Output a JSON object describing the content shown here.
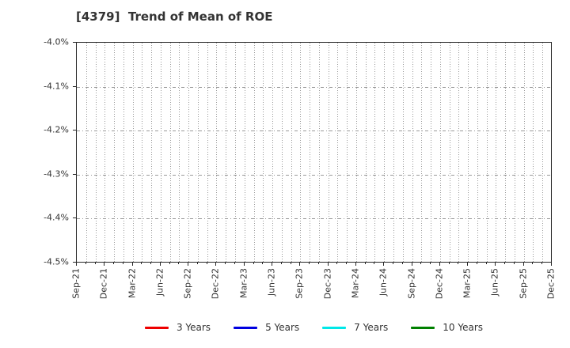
{
  "chart_data": {
    "type": "line",
    "title": "[4379]  Trend of Mean of ROE",
    "xlabel": "",
    "ylabel": "",
    "y_tick_labels": [
      "-4.0%",
      "-4.1%",
      "-4.2%",
      "-4.3%",
      "-4.4%",
      "-4.5%"
    ],
    "ylim": [
      -4.5,
      -4.0
    ],
    "x_tick_labels": [
      "Sep-21",
      "Dec-21",
      "Mar-22",
      "Jun-22",
      "Sep-22",
      "Dec-22",
      "Mar-23",
      "Jun-23",
      "Sep-23",
      "Dec-23",
      "Mar-24",
      "Jun-24",
      "Sep-24",
      "Dec-24",
      "Mar-25",
      "Jun-25",
      "Sep-25",
      "Dec-25"
    ],
    "months_per_x_tick": 3,
    "grid": true,
    "legend_position": "bottom",
    "series": [
      {
        "name": "3 Years",
        "color": "#ee0000",
        "values": []
      },
      {
        "name": "5 Years",
        "color": "#0000e0",
        "values": []
      },
      {
        "name": "7 Years",
        "color": "#00e8e8",
        "values": []
      },
      {
        "name": "10 Years",
        "color": "#008000",
        "values": []
      }
    ],
    "colors": {
      "grid": "#999999",
      "axis_border": "#262626",
      "text": "#333333",
      "background": "#ffffff"
    }
  }
}
